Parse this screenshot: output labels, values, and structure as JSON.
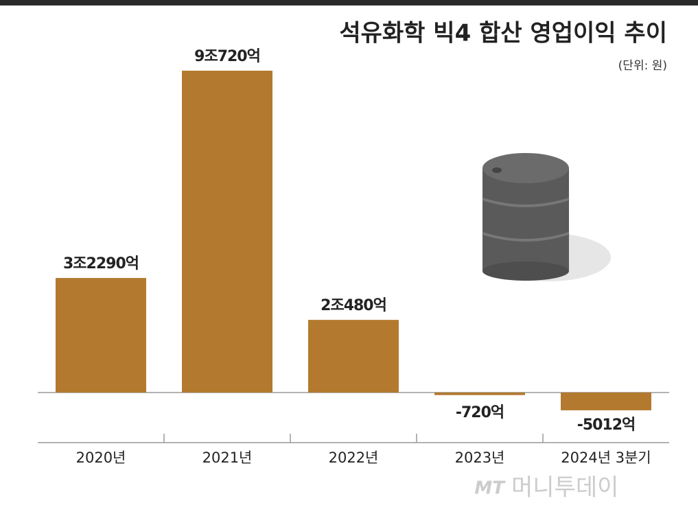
{
  "chart_data": {
    "type": "bar",
    "title": "석유화학 빅4 합산 영업이익 추이",
    "subtitle": "(단위: 원)",
    "categories": [
      "2020년",
      "2021년",
      "2022년",
      "2023년",
      "2024년 3분기"
    ],
    "values": [
      32290,
      90720,
      20480,
      -720,
      -5012
    ],
    "value_labels": [
      "3조2290억",
      "9조720억",
      "2조480억",
      "-720억",
      "-5012억"
    ],
    "color": "#b37a2f"
  },
  "watermark": {
    "logo": "MT",
    "name": "머니투데이"
  }
}
